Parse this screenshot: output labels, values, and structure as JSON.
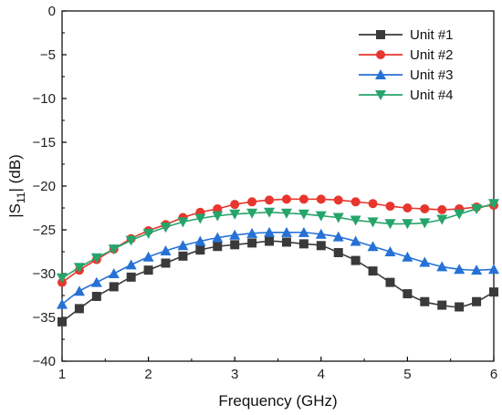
{
  "chart_data": {
    "type": "line",
    "title": "",
    "xlabel": "Frequency (GHz)",
    "ylabel_main": "|S",
    "ylabel_sub": "11",
    "ylabel_tail": "| (dB)",
    "xlim": [
      1,
      6
    ],
    "ylim": [
      -40,
      0
    ],
    "xticks": [
      1,
      2,
      3,
      4,
      5,
      6
    ],
    "yticks": [
      0,
      -5,
      -10,
      -15,
      -20,
      -25,
      -30,
      -35,
      -40
    ],
    "grid": false,
    "legend_position": "top-right",
    "x": [
      1.0,
      1.2,
      1.4,
      1.6,
      1.8,
      2.0,
      2.2,
      2.4,
      2.6,
      2.8,
      3.0,
      3.2,
      3.4,
      3.6,
      3.8,
      4.0,
      4.2,
      4.4,
      4.6,
      4.8,
      5.0,
      5.2,
      5.4,
      5.6,
      5.8,
      6.0
    ],
    "series": [
      {
        "name": "Unit #1",
        "color": "#3a3a3a",
        "marker": "square",
        "values": [
          -35.5,
          -34.0,
          -32.6,
          -31.5,
          -30.4,
          -29.6,
          -28.8,
          -28.0,
          -27.3,
          -26.9,
          -26.7,
          -26.5,
          -26.3,
          -26.4,
          -26.6,
          -26.8,
          -27.6,
          -28.5,
          -29.7,
          -31.0,
          -32.3,
          -33.2,
          -33.6,
          -33.8,
          -33.2,
          -32.1
        ]
      },
      {
        "name": "Unit #2",
        "color": "#e8362e",
        "marker": "circle",
        "values": [
          -31.0,
          -29.6,
          -28.4,
          -27.2,
          -26.0,
          -25.1,
          -24.4,
          -23.6,
          -23.0,
          -22.6,
          -22.1,
          -21.8,
          -21.6,
          -21.5,
          -21.5,
          -21.5,
          -21.6,
          -21.8,
          -22.0,
          -22.3,
          -22.5,
          -22.6,
          -22.7,
          -22.6,
          -22.4,
          -22.2
        ]
      },
      {
        "name": "Unit #3",
        "color": "#2671d6",
        "marker": "triangle-up",
        "values": [
          -33.5,
          -32.0,
          -31.0,
          -30.0,
          -29.0,
          -28.1,
          -27.4,
          -26.8,
          -26.3,
          -25.9,
          -25.6,
          -25.4,
          -25.3,
          -25.3,
          -25.3,
          -25.5,
          -25.8,
          -26.3,
          -26.9,
          -27.5,
          -28.1,
          -28.7,
          -29.2,
          -29.5,
          -29.6,
          -29.5
        ]
      },
      {
        "name": "Unit #4",
        "color": "#27a46a",
        "marker": "triangle-down",
        "values": [
          -30.5,
          -29.3,
          -28.2,
          -27.2,
          -26.2,
          -25.4,
          -24.7,
          -24.1,
          -23.7,
          -23.4,
          -23.2,
          -23.1,
          -23.0,
          -23.1,
          -23.2,
          -23.4,
          -23.6,
          -23.9,
          -24.1,
          -24.3,
          -24.3,
          -24.2,
          -23.8,
          -23.2,
          -22.6,
          -22.0
        ]
      }
    ]
  }
}
